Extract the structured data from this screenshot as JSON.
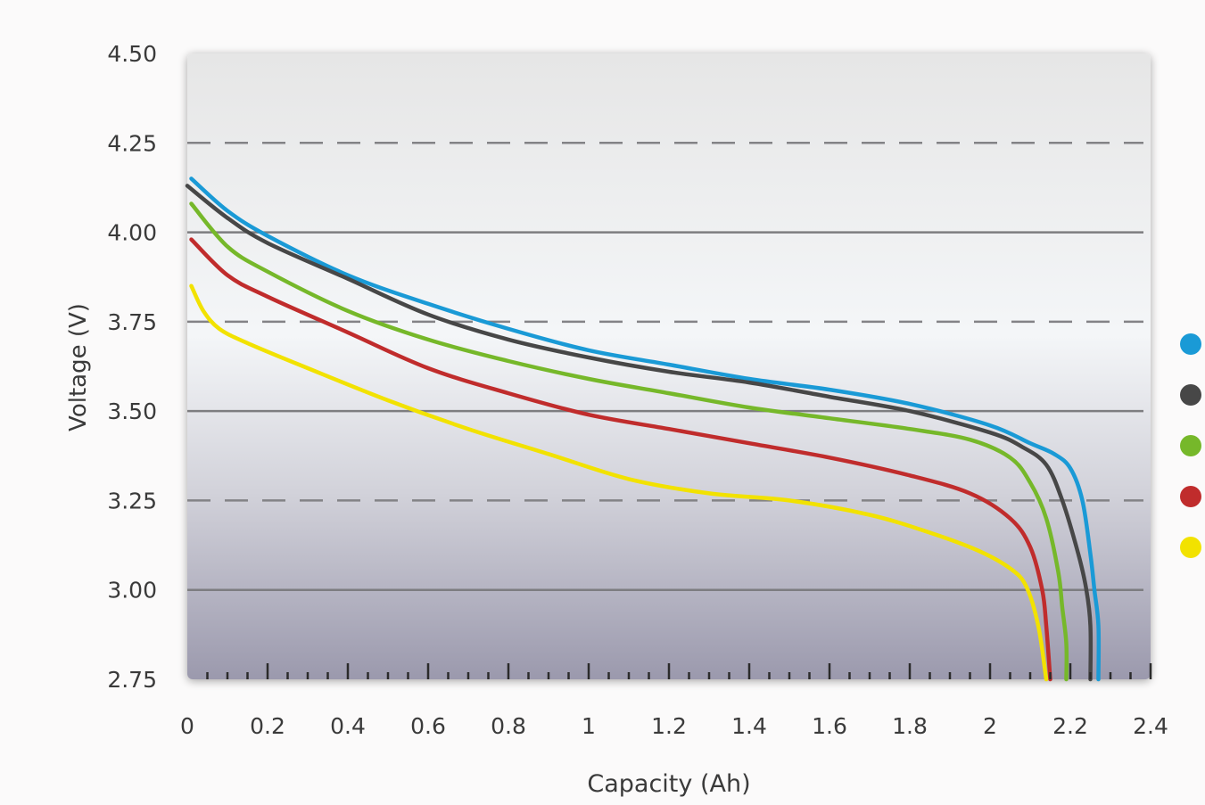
{
  "chart_data": {
    "type": "line",
    "title": "",
    "xlabel": "Capacity (Ah)",
    "ylabel": "Voltage (V)",
    "xlim": [
      0,
      2.4
    ],
    "ylim": [
      2.75,
      4.5
    ],
    "x_ticks": [
      "0",
      "0.2",
      "0.4",
      "0.6",
      "0.8",
      "1",
      "1.2",
      "1.4",
      "1.6",
      "1.8",
      "2",
      "2.2",
      "2.4"
    ],
    "y_ticks": [
      "2.75",
      "3.00",
      "3.25",
      "3.50",
      "3.75",
      "4.00",
      "4.25",
      "4.50"
    ],
    "gridlines": {
      "solid": [
        3.0,
        3.5,
        4.0
      ],
      "dashed": [
        3.25,
        3.75,
        4.25
      ]
    },
    "legend_position": "right",
    "series": [
      {
        "color": "#1a9ad6",
        "points": [
          [
            0.01,
            4.15
          ],
          [
            0.1,
            4.06
          ],
          [
            0.2,
            3.99
          ],
          [
            0.4,
            3.88
          ],
          [
            0.6,
            3.8
          ],
          [
            0.8,
            3.73
          ],
          [
            1.0,
            3.67
          ],
          [
            1.2,
            3.63
          ],
          [
            1.4,
            3.59
          ],
          [
            1.6,
            3.56
          ],
          [
            1.8,
            3.52
          ],
          [
            2.0,
            3.46
          ],
          [
            2.1,
            3.41
          ],
          [
            2.16,
            3.38
          ],
          [
            2.2,
            3.34
          ],
          [
            2.23,
            3.25
          ],
          [
            2.25,
            3.1
          ],
          [
            2.26,
            3.0
          ],
          [
            2.27,
            2.9
          ],
          [
            2.27,
            2.75
          ]
        ]
      },
      {
        "color": "#474747",
        "points": [
          [
            0.0,
            4.13
          ],
          [
            0.1,
            4.04
          ],
          [
            0.2,
            3.97
          ],
          [
            0.4,
            3.87
          ],
          [
            0.6,
            3.77
          ],
          [
            0.8,
            3.7
          ],
          [
            1.0,
            3.65
          ],
          [
            1.2,
            3.61
          ],
          [
            1.4,
            3.58
          ],
          [
            1.6,
            3.54
          ],
          [
            1.8,
            3.5
          ],
          [
            2.0,
            3.44
          ],
          [
            2.08,
            3.4
          ],
          [
            2.14,
            3.35
          ],
          [
            2.18,
            3.25
          ],
          [
            2.22,
            3.1
          ],
          [
            2.24,
            3.0
          ],
          [
            2.25,
            2.9
          ],
          [
            2.25,
            2.75
          ]
        ]
      },
      {
        "color": "#76b82a",
        "points": [
          [
            0.01,
            4.08
          ],
          [
            0.1,
            3.96
          ],
          [
            0.2,
            3.89
          ],
          [
            0.4,
            3.78
          ],
          [
            0.6,
            3.7
          ],
          [
            0.8,
            3.64
          ],
          [
            1.0,
            3.59
          ],
          [
            1.2,
            3.55
          ],
          [
            1.4,
            3.51
          ],
          [
            1.6,
            3.48
          ],
          [
            1.8,
            3.45
          ],
          [
            1.95,
            3.42
          ],
          [
            2.05,
            3.37
          ],
          [
            2.1,
            3.3
          ],
          [
            2.14,
            3.2
          ],
          [
            2.17,
            3.05
          ],
          [
            2.18,
            2.95
          ],
          [
            2.19,
            2.85
          ],
          [
            2.19,
            2.75
          ]
        ]
      },
      {
        "color": "#c02c2c",
        "points": [
          [
            0.01,
            3.98
          ],
          [
            0.1,
            3.88
          ],
          [
            0.2,
            3.82
          ],
          [
            0.4,
            3.72
          ],
          [
            0.6,
            3.62
          ],
          [
            0.8,
            3.55
          ],
          [
            1.0,
            3.49
          ],
          [
            1.2,
            3.45
          ],
          [
            1.4,
            3.41
          ],
          [
            1.6,
            3.37
          ],
          [
            1.8,
            3.32
          ],
          [
            1.95,
            3.27
          ],
          [
            2.05,
            3.2
          ],
          [
            2.1,
            3.12
          ],
          [
            2.13,
            3.0
          ],
          [
            2.14,
            2.9
          ],
          [
            2.15,
            2.75
          ]
        ]
      },
      {
        "color": "#f2e200",
        "points": [
          [
            0.01,
            3.85
          ],
          [
            0.04,
            3.78
          ],
          [
            0.08,
            3.73
          ],
          [
            0.15,
            3.69
          ],
          [
            0.3,
            3.62
          ],
          [
            0.5,
            3.53
          ],
          [
            0.7,
            3.45
          ],
          [
            0.9,
            3.38
          ],
          [
            1.1,
            3.31
          ],
          [
            1.3,
            3.27
          ],
          [
            1.5,
            3.25
          ],
          [
            1.7,
            3.21
          ],
          [
            1.85,
            3.16
          ],
          [
            1.97,
            3.11
          ],
          [
            2.05,
            3.06
          ],
          [
            2.09,
            3.01
          ],
          [
            2.12,
            2.9
          ],
          [
            2.14,
            2.75
          ]
        ]
      }
    ]
  }
}
